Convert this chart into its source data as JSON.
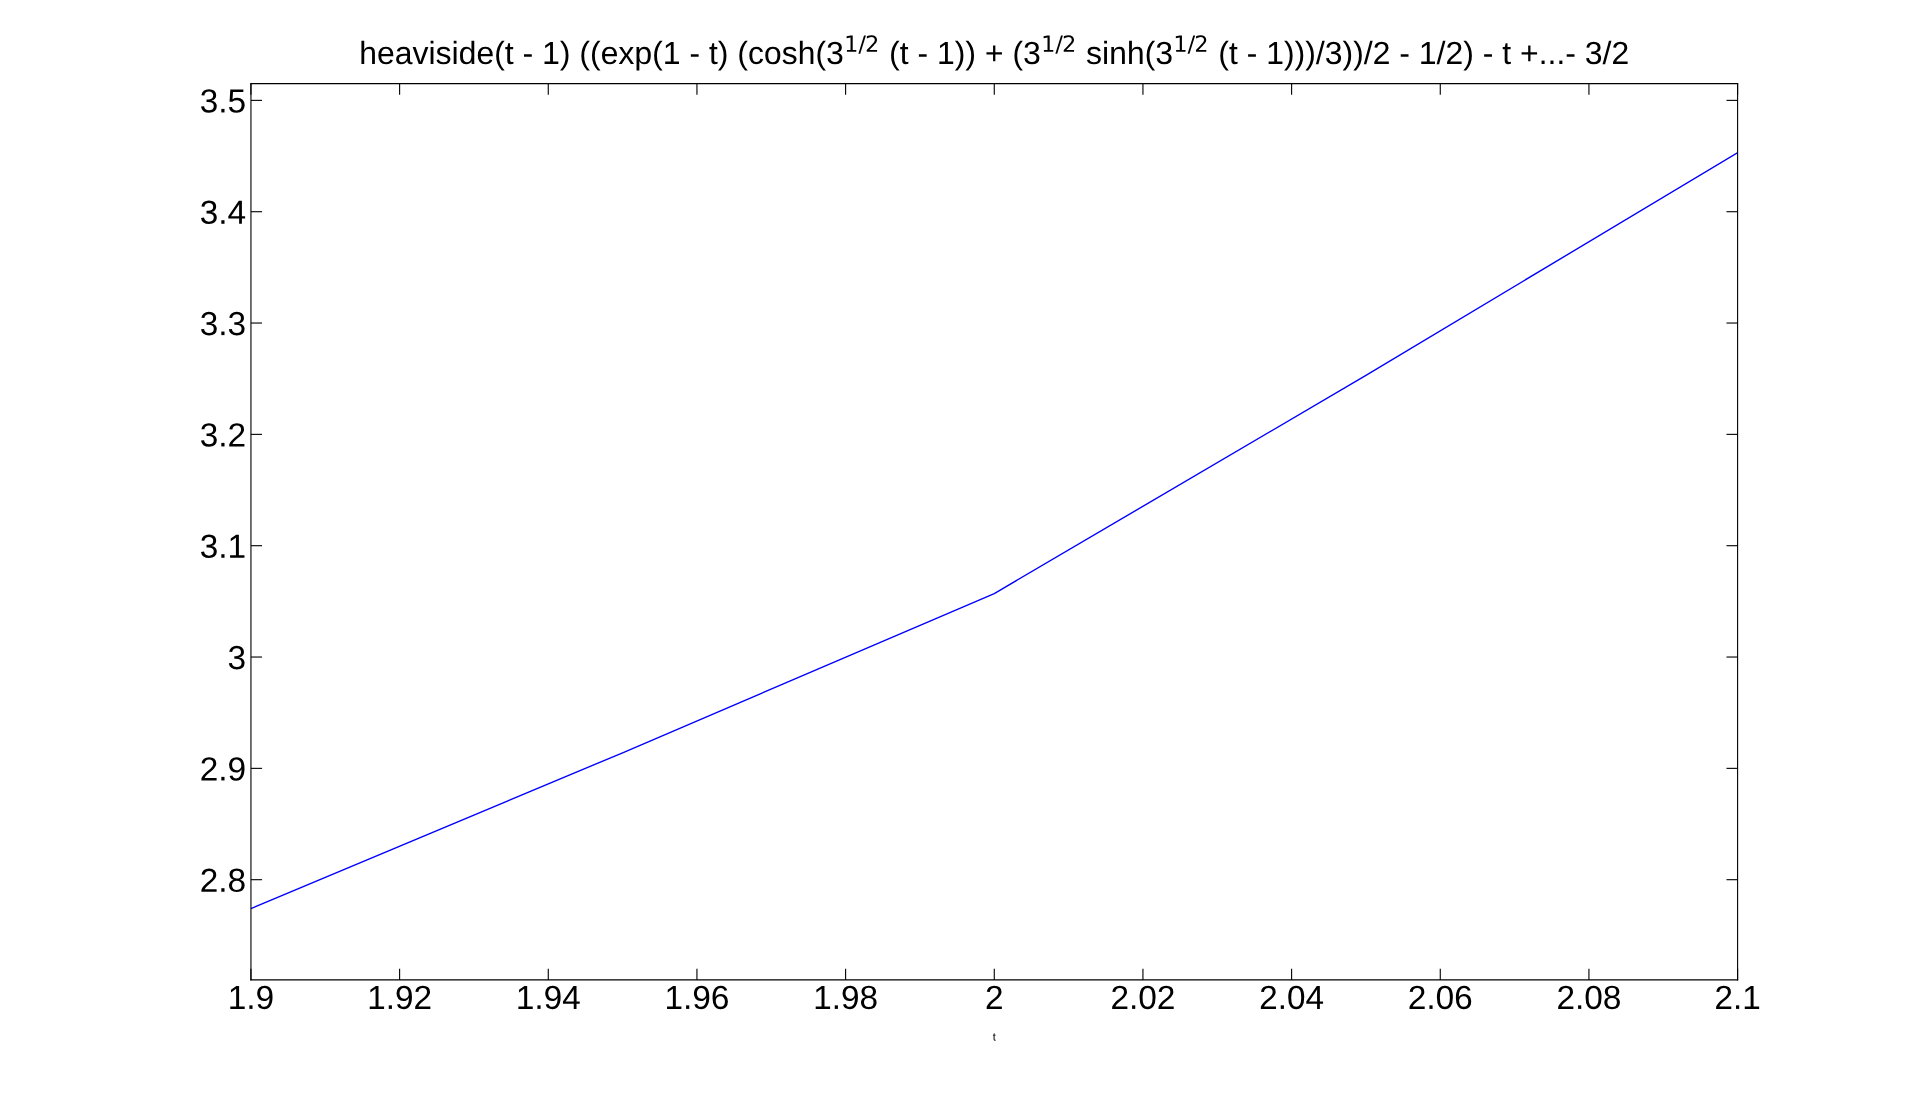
{
  "chart_data": {
    "type": "line",
    "title": "heaviside(t - 1) ((exp(1 - t) (cosh(3$^{1/2}$ (t - 1)) + (3$^{1/2}$ sinh(3$^{1/2}$ (t - 1)))/3))/2 - 1/2) - t +...- 3/2",
    "xlabel": "t",
    "x": [
      1.9,
      1.95,
      2.0,
      2.05,
      2.1
    ],
    "series": [
      {
        "color": "#0000ff",
        "values": [
          2.774,
          2.914,
          3.057,
          3.253,
          3.453
        ]
      }
    ],
    "xlim": [
      1.9,
      2.1
    ],
    "xticks": [
      1.9,
      1.92,
      1.94,
      1.96,
      1.98,
      2,
      2.02,
      2.04,
      2.06,
      2.08,
      2.1
    ],
    "ylim": [
      2.71,
      3.515
    ],
    "yticks": [
      2.8,
      2.9,
      3,
      3.1,
      3.2,
      3.3,
      3.4,
      3.5
    ],
    "grid": false,
    "marker": "none",
    "line_style": "solid"
  }
}
